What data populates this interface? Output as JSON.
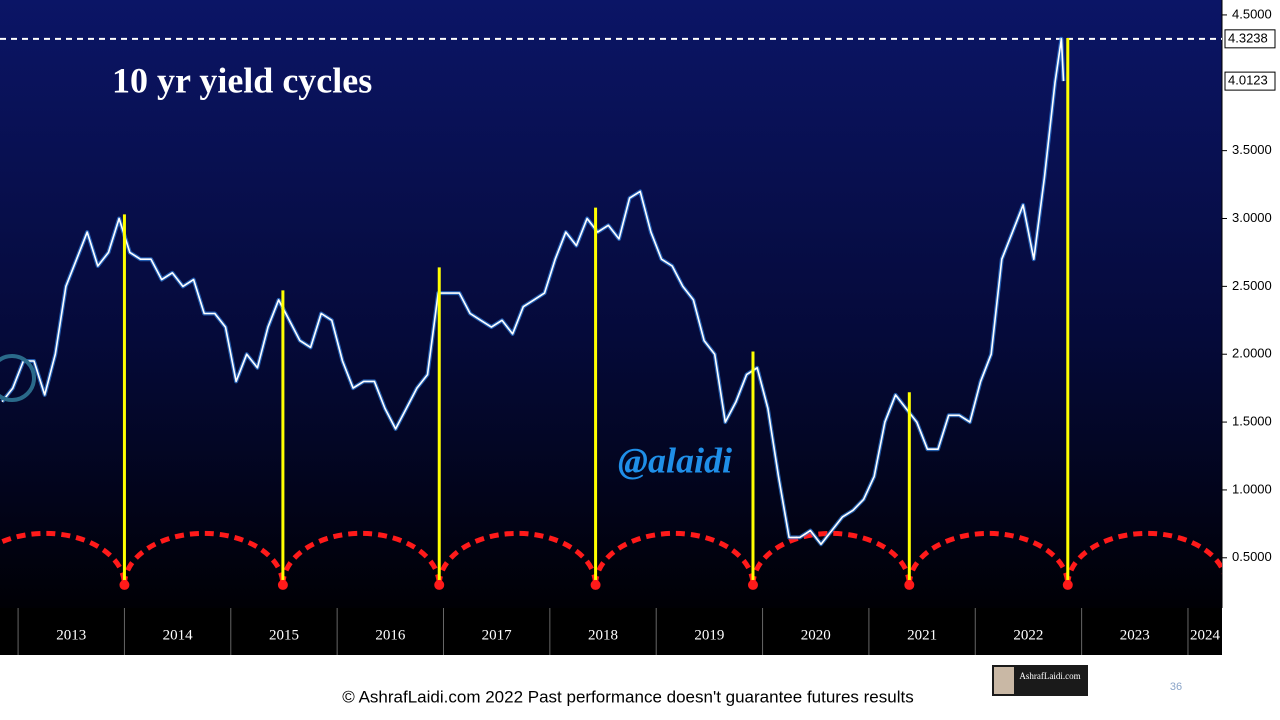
{
  "chart_data": {
    "type": "line",
    "title": "10 yr yield cycles",
    "annotation": "@alaidi",
    "footer": "© AshrafLaidi.com 2022 Past performance doesn't guarantee futures results",
    "page_number": "36",
    "logo_text": "AshrafLaidi.com",
    "color": "#ffffff",
    "xlim": [
      2012.83,
      2024.32
    ],
    "xticks": [
      2013,
      2014,
      2015,
      2016,
      2017,
      2018,
      2019,
      2020,
      2021,
      2022,
      2023,
      2024
    ],
    "ylim": [
      0.13,
      4.61
    ],
    "yticks": [
      {
        "value": 0.5,
        "label": "0.5000"
      },
      {
        "value": 1.0,
        "label": "1.0000"
      },
      {
        "value": 1.5,
        "label": "1.5000"
      },
      {
        "value": 2.0,
        "label": "2.0000"
      },
      {
        "value": 2.5,
        "label": "2.5000"
      },
      {
        "value": 3.0,
        "label": "3.0000"
      },
      {
        "value": 3.5,
        "label": "3.5000"
      },
      {
        "value": 4.5,
        "label": "4.5000"
      }
    ],
    "x": [
      2012.85,
      2012.95,
      2013.05,
      2013.15,
      2013.25,
      2013.35,
      2013.45,
      2013.55,
      2013.65,
      2013.75,
      2013.85,
      2013.95,
      2014.05,
      2014.15,
      2014.25,
      2014.35,
      2014.45,
      2014.55,
      2014.65,
      2014.75,
      2014.85,
      2014.95,
      2015.05,
      2015.15,
      2015.25,
      2015.35,
      2015.45,
      2015.55,
      2015.65,
      2015.75,
      2015.85,
      2015.95,
      2016.05,
      2016.15,
      2016.25,
      2016.35,
      2016.45,
      2016.55,
      2016.65,
      2016.75,
      2016.85,
      2016.95,
      2017.05,
      2017.15,
      2017.25,
      2017.35,
      2017.45,
      2017.55,
      2017.65,
      2017.75,
      2017.85,
      2017.95,
      2018.05,
      2018.15,
      2018.25,
      2018.35,
      2018.45,
      2018.55,
      2018.65,
      2018.75,
      2018.85,
      2018.95,
      2019.05,
      2019.15,
      2019.25,
      2019.35,
      2019.45,
      2019.55,
      2019.65,
      2019.75,
      2019.85,
      2019.95,
      2020.05,
      2020.15,
      2020.25,
      2020.35,
      2020.45,
      2020.55,
      2020.65,
      2020.75,
      2020.85,
      2020.95,
      2021.05,
      2021.15,
      2021.25,
      2021.35,
      2021.45,
      2021.55,
      2021.65,
      2021.75,
      2021.85,
      2021.95,
      2022.05,
      2022.15,
      2022.25,
      2022.35,
      2022.45,
      2022.55,
      2022.65,
      2022.75,
      2022.81,
      2022.83
    ],
    "values": [
      1.65,
      1.75,
      1.95,
      1.95,
      1.7,
      2.0,
      2.5,
      2.7,
      2.9,
      2.65,
      2.75,
      3.0,
      2.75,
      2.7,
      2.7,
      2.55,
      2.6,
      2.5,
      2.55,
      2.3,
      2.3,
      2.2,
      1.8,
      2.0,
      1.9,
      2.2,
      2.4,
      2.25,
      2.1,
      2.05,
      2.3,
      2.25,
      1.95,
      1.75,
      1.8,
      1.8,
      1.6,
      1.45,
      1.6,
      1.75,
      1.85,
      2.45,
      2.45,
      2.45,
      2.3,
      2.25,
      2.2,
      2.25,
      2.15,
      2.35,
      2.4,
      2.45,
      2.7,
      2.9,
      2.8,
      3.0,
      2.9,
      2.95,
      2.85,
      3.15,
      3.2,
      2.9,
      2.7,
      2.65,
      2.5,
      2.4,
      2.1,
      2.0,
      1.5,
      1.65,
      1.85,
      1.9,
      1.6,
      1.1,
      0.65,
      0.65,
      0.7,
      0.6,
      0.7,
      0.8,
      0.85,
      0.93,
      1.1,
      1.5,
      1.7,
      1.6,
      1.5,
      1.3,
      1.3,
      1.55,
      1.55,
      1.5,
      1.8,
      2.0,
      2.7,
      2.9,
      3.1,
      2.7,
      3.3,
      4.0,
      4.3238,
      4.0123
    ],
    "high_level": {
      "value": 4.3238,
      "label": "4.3238"
    },
    "last_price": {
      "value": 4.0123,
      "label": "4.0123"
    },
    "cycles": {
      "x": [
        2014.0,
        2015.49,
        2016.96,
        2018.43,
        2019.91,
        2021.38,
        2022.87
      ],
      "top": [
        3.03,
        2.47,
        2.64,
        3.08,
        2.02,
        1.72,
        4.33
      ],
      "low": 0.3,
      "arc_peak": 0.68
    }
  }
}
